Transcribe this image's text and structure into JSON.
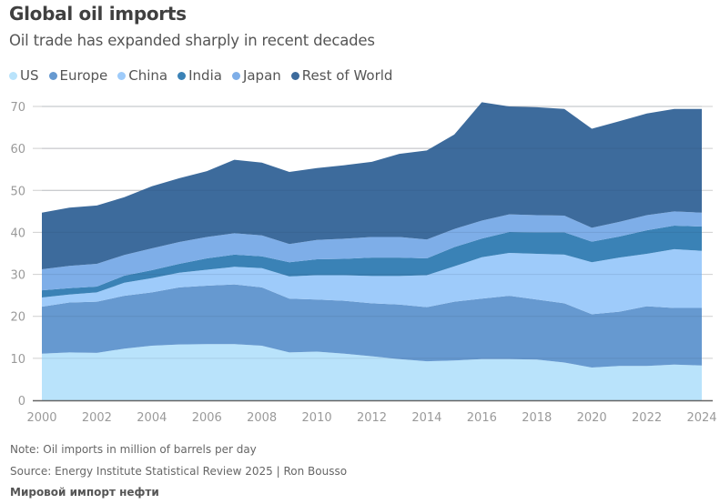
{
  "chart_data": {
    "type": "area",
    "stacked": true,
    "title": "Global oil imports",
    "subtitle": "Oil trade has expanded sharply in recent decades",
    "xlabel": "",
    "ylabel": "",
    "x": [
      2000,
      2001,
      2002,
      2003,
      2004,
      2005,
      2006,
      2007,
      2008,
      2009,
      2010,
      2011,
      2012,
      2013,
      2014,
      2015,
      2016,
      2017,
      2018,
      2019,
      2020,
      2021,
      2022,
      2023,
      2024
    ],
    "x_ticks": [
      "2000",
      "2002",
      "2004",
      "2006",
      "2008",
      "2010",
      "2012",
      "2014",
      "2016",
      "2018",
      "2020",
      "2022",
      "2024"
    ],
    "y_ticks": [
      "0",
      "10",
      "20",
      "30",
      "40",
      "50",
      "60",
      "70"
    ],
    "ylim": [
      0,
      70
    ],
    "xlim": [
      2000,
      2024
    ],
    "grid": true,
    "legend_position": "top-left",
    "series": [
      {
        "name": "US",
        "color": "#b9e3fb",
        "values": [
          11.1,
          11.4,
          11.3,
          12.3,
          13.0,
          13.3,
          13.4,
          13.4,
          13.0,
          11.4,
          11.6,
          11.1,
          10.5,
          9.8,
          9.3,
          9.5,
          9.8,
          9.8,
          9.7,
          9.0,
          7.8,
          8.2,
          8.2,
          8.5,
          8.3
        ]
      },
      {
        "name": "Europe",
        "color": "#6699d0",
        "values": [
          11.2,
          11.9,
          12.2,
          12.6,
          12.7,
          13.6,
          13.9,
          14.2,
          13.9,
          12.8,
          12.4,
          12.6,
          12.6,
          13.0,
          12.9,
          14.0,
          14.4,
          15.1,
          14.3,
          14.1,
          12.7,
          12.9,
          14.2,
          13.5,
          13.7
        ]
      },
      {
        "name": "China",
        "color": "#9ecbfa",
        "values": [
          2.2,
          1.9,
          2.2,
          3.1,
          3.4,
          3.5,
          3.8,
          4.2,
          4.6,
          5.3,
          5.8,
          6.1,
          6.5,
          6.8,
          7.6,
          8.4,
          9.9,
          10.2,
          10.9,
          11.6,
          12.4,
          12.9,
          12.5,
          14.0,
          13.6
        ]
      },
      {
        "name": "India",
        "color": "#3a82b6",
        "values": [
          1.7,
          1.5,
          1.4,
          1.7,
          1.9,
          2.1,
          2.7,
          2.9,
          2.8,
          3.4,
          3.8,
          3.9,
          4.4,
          4.4,
          4.0,
          4.6,
          4.4,
          5.0,
          5.1,
          5.3,
          4.9,
          5.0,
          5.6,
          5.6,
          5.8
        ]
      },
      {
        "name": "Japan",
        "color": "#7eaee8",
        "values": [
          5.0,
          5.3,
          5.4,
          4.9,
          5.2,
          5.2,
          5.1,
          5.1,
          5.0,
          4.3,
          4.6,
          4.8,
          4.9,
          4.9,
          4.5,
          4.3,
          4.3,
          4.2,
          4.1,
          4.0,
          3.3,
          3.5,
          3.6,
          3.4,
          3.3
        ]
      },
      {
        "name": "Rest of World",
        "color": "#3d6b9c",
        "values": [
          13.5,
          13.9,
          13.9,
          13.8,
          14.8,
          15.2,
          15.7,
          17.5,
          17.3,
          17.2,
          17.1,
          17.5,
          17.9,
          19.8,
          21.2,
          22.5,
          28.2,
          25.7,
          25.7,
          25.4,
          23.6,
          24.0,
          24.2,
          24.4,
          24.7
        ]
      }
    ],
    "annotations": []
  },
  "footer": {
    "note": "Note: Oil imports in million of barrels per day",
    "source": "Source: Energy Institute Statistical Review 2025 | Ron Bousso",
    "caption": "Мировой импорт нефти"
  }
}
